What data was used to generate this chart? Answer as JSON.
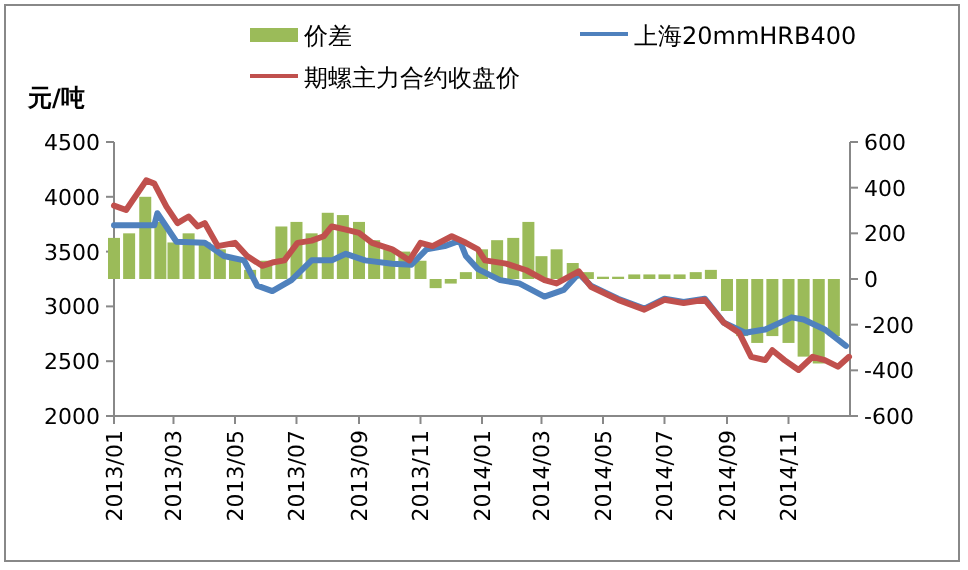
{
  "chart_data": {
    "type": "line",
    "ylabel": "元/吨",
    "legend": "top",
    "xlim": [
      "2013-01-01",
      "2015-01-01"
    ],
    "xticks": [
      {
        "value": "2013-01-01",
        "label": "2013/01"
      },
      {
        "value": "2013-03-01",
        "label": "2013/03"
      },
      {
        "value": "2013-05-01",
        "label": "2013/05"
      },
      {
        "value": "2013-07-01",
        "label": "2013/07"
      },
      {
        "value": "2013-09-01",
        "label": "2013/09"
      },
      {
        "value": "2013-11-01",
        "label": "2013/11"
      },
      {
        "value": "2014-01-01",
        "label": "2014/01"
      },
      {
        "value": "2014-03-01",
        "label": "2014/03"
      },
      {
        "value": "2014-05-01",
        "label": "2014/05"
      },
      {
        "value": "2014-07-01",
        "label": "2014/07"
      },
      {
        "value": "2014-09-01",
        "label": "2014/09"
      },
      {
        "value": "2014-11-01",
        "label": "2014/11"
      }
    ],
    "ylim": [
      2000,
      4500
    ],
    "yticks": [
      2000,
      2500,
      3000,
      3500,
      4000,
      4500
    ],
    "y2lim": [
      -600,
      600
    ],
    "y2ticks": [
      -600,
      -400,
      -200,
      0,
      200,
      400,
      600
    ],
    "series": [
      {
        "name": "价差",
        "type": "bar",
        "axis": "y2",
        "color": "#9bbb59",
        "x": [
          "2013-01-01",
          "2013-01-16",
          "2013-02-01",
          "2013-02-16",
          "2013-03-01",
          "2013-03-16",
          "2013-04-01",
          "2013-04-16",
          "2013-05-01",
          "2013-05-16",
          "2013-06-01",
          "2013-06-16",
          "2013-07-01",
          "2013-07-16",
          "2013-08-01",
          "2013-08-16",
          "2013-09-01",
          "2013-09-16",
          "2013-10-01",
          "2013-10-16",
          "2013-11-01",
          "2013-11-16",
          "2013-12-01",
          "2013-12-16",
          "2014-01-01",
          "2014-01-16",
          "2014-02-01",
          "2014-02-16",
          "2014-03-01",
          "2014-03-16",
          "2014-04-01",
          "2014-04-16",
          "2014-05-01",
          "2014-05-16",
          "2014-06-01",
          "2014-06-16",
          "2014-07-01",
          "2014-07-16",
          "2014-08-01",
          "2014-08-16",
          "2014-09-01",
          "2014-09-16",
          "2014-10-01",
          "2014-10-16",
          "2014-11-01",
          "2014-11-16",
          "2014-12-01",
          "2014-12-16"
        ],
        "values": [
          180,
          200,
          360,
          250,
          160,
          200,
          160,
          130,
          90,
          40,
          80,
          230,
          250,
          200,
          290,
          280,
          250,
          170,
          130,
          120,
          80,
          -40,
          -20,
          30,
          130,
          170,
          180,
          250,
          100,
          130,
          70,
          30,
          10,
          10,
          20,
          20,
          20,
          20,
          30,
          40,
          -140,
          -250,
          -280,
          -250,
          -280,
          -340,
          -370,
          -250
        ]
      },
      {
        "name": "上海20mmHRB400",
        "color": "#4f81bd",
        "x": [
          "2013-01-01",
          "2013-02-10",
          "2013-02-13",
          "2013-03-04",
          "2013-04-01",
          "2013-04-20",
          "2013-05-10",
          "2013-05-23",
          "2013-06-07",
          "2013-06-26",
          "2013-07-16",
          "2013-08-05",
          "2013-08-19",
          "2013-09-07",
          "2013-10-04",
          "2013-10-23",
          "2013-11-07",
          "2013-11-25",
          "2013-12-10",
          "2013-12-16",
          "2013-12-28",
          "2014-01-19",
          "2014-02-07",
          "2014-03-04",
          "2014-03-23",
          "2014-04-07",
          "2014-04-19",
          "2014-05-16",
          "2014-06-11",
          "2014-07-01",
          "2014-07-20",
          "2014-08-10",
          "2014-08-29",
          "2014-09-19",
          "2014-10-09",
          "2014-11-04",
          "2014-11-16",
          "2014-12-07",
          "2014-12-28"
        ],
        "values": [
          3740,
          3740,
          3850,
          3590,
          3580,
          3460,
          3420,
          3190,
          3140,
          3240,
          3420,
          3420,
          3480,
          3420,
          3390,
          3380,
          3520,
          3550,
          3600,
          3460,
          3340,
          3240,
          3210,
          3090,
          3150,
          3300,
          3190,
          3070,
          2980,
          3070,
          3040,
          3070,
          2850,
          2760,
          2790,
          2900,
          2880,
          2790,
          2640
        ]
      },
      {
        "name": "期螺主力合约收盘价",
        "color": "#c0504d",
        "x": [
          "2013-01-01",
          "2013-01-13",
          "2013-02-02",
          "2013-02-10",
          "2013-02-22",
          "2013-03-05",
          "2013-03-16",
          "2013-03-25",
          "2013-04-01",
          "2013-04-14",
          "2013-05-01",
          "2013-05-13",
          "2013-05-28",
          "2013-06-07",
          "2013-06-19",
          "2013-07-02",
          "2013-07-16",
          "2013-07-28",
          "2013-08-05",
          "2013-08-19",
          "2013-09-01",
          "2013-09-14",
          "2013-10-04",
          "2013-10-21",
          "2013-11-01",
          "2013-11-13",
          "2013-12-02",
          "2013-12-16",
          "2013-12-28",
          "2014-01-04",
          "2014-01-25",
          "2014-02-14",
          "2014-03-04",
          "2014-03-16",
          "2014-04-07",
          "2014-04-19",
          "2014-05-16",
          "2014-06-11",
          "2014-07-01",
          "2014-07-20",
          "2014-08-10",
          "2014-08-29",
          "2014-09-13",
          "2014-09-25",
          "2014-10-09",
          "2014-10-16",
          "2014-10-28",
          "2014-11-11",
          "2014-11-25",
          "2014-12-07",
          "2014-12-20",
          "2014-12-31"
        ],
        "values": [
          3920,
          3880,
          4150,
          4120,
          3910,
          3760,
          3820,
          3730,
          3760,
          3550,
          3580,
          3460,
          3370,
          3400,
          3420,
          3580,
          3600,
          3640,
          3730,
          3700,
          3670,
          3580,
          3520,
          3420,
          3580,
          3550,
          3640,
          3580,
          3520,
          3420,
          3390,
          3330,
          3240,
          3210,
          3320,
          3180,
          3060,
          2970,
          3060,
          3030,
          3060,
          2850,
          2760,
          2540,
          2510,
          2600,
          2510,
          2420,
          2540,
          2510,
          2450,
          2540
        ]
      }
    ]
  }
}
